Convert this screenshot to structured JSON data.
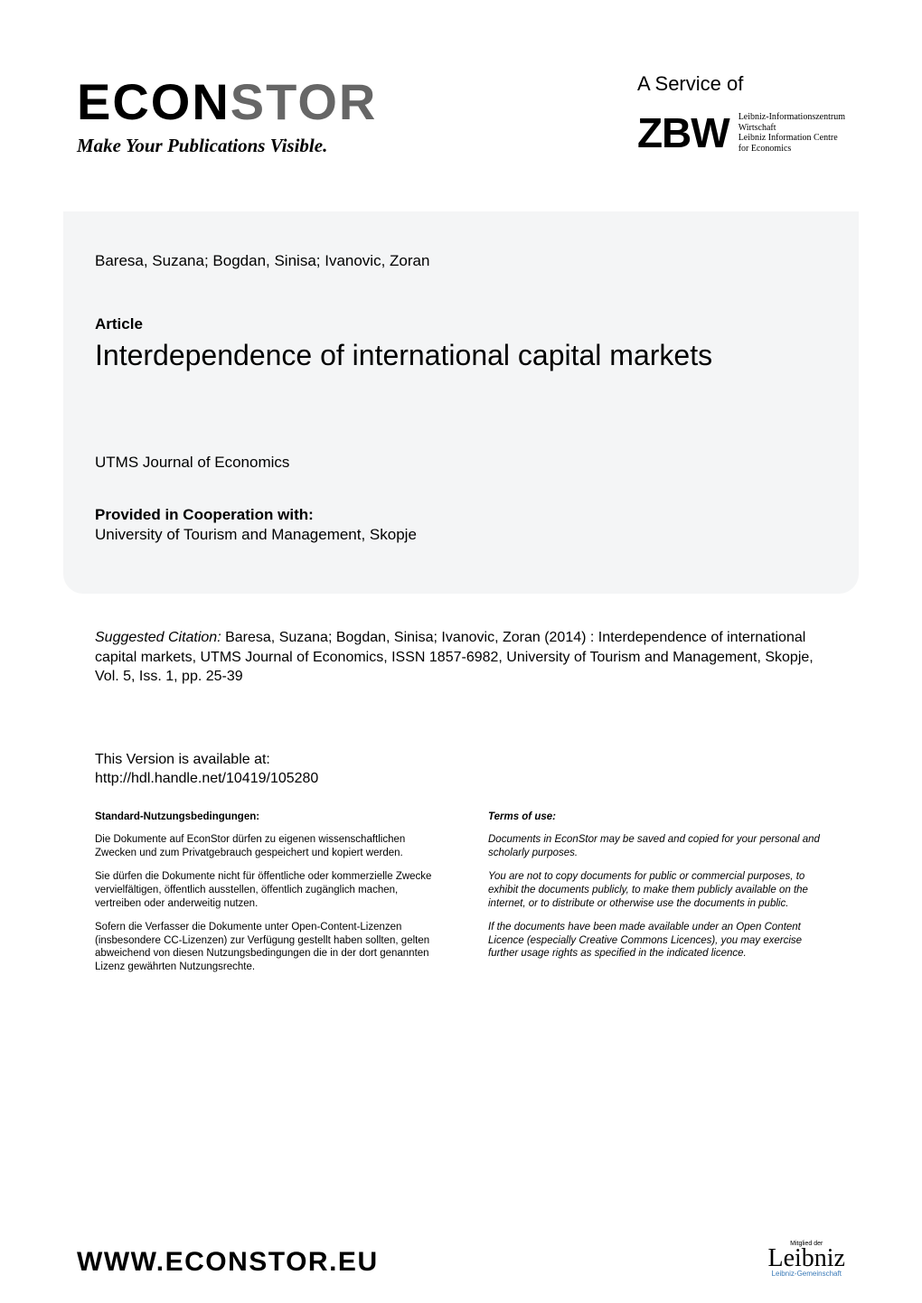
{
  "header": {
    "logo_main": "ECON",
    "logo_accent": "STOR",
    "tagline": "Make Your Publications Visible.",
    "service_of": "A Service of",
    "zbw_logo": "ZBW",
    "zbw_line1": "Leibniz-Informationszentrum",
    "zbw_line2": "Wirtschaft",
    "zbw_line3": "Leibniz Information Centre",
    "zbw_line4": "for Economics"
  },
  "card": {
    "authors": "Baresa, Suzana; Bogdan, Sinisa; Ivanovic, Zoran",
    "article_label": "Article",
    "title": "Interdependence of international capital markets",
    "journal": "UTMS Journal of Economics",
    "provided_label": "Provided in Cooperation with:",
    "provided_org": "University of Tourism and Management, Skopje"
  },
  "citation": {
    "label": "Suggested Citation:",
    "text": " Baresa, Suzana; Bogdan, Sinisa; Ivanovic, Zoran (2014) : Interdependence of international capital markets, UTMS Journal of Economics, ISSN 1857-6982, University of Tourism and Management, Skopje, Vol. 5, Iss. 1, pp. 25-39"
  },
  "version": {
    "label": "This Version is available at:",
    "url": "http://hdl.handle.net/10419/105280"
  },
  "terms_de": {
    "heading": "Standard-Nutzungsbedingungen:",
    "p1": "Die Dokumente auf EconStor dürfen zu eigenen wissenschaftlichen Zwecken und zum Privatgebrauch gespeichert und kopiert werden.",
    "p2": "Sie dürfen die Dokumente nicht für öffentliche oder kommerzielle Zwecke vervielfältigen, öffentlich ausstellen, öffentlich zugänglich machen, vertreiben oder anderweitig nutzen.",
    "p3": "Sofern die Verfasser die Dokumente unter Open-Content-Lizenzen (insbesondere CC-Lizenzen) zur Verfügung gestellt haben sollten, gelten abweichend von diesen Nutzungsbedingungen die in der dort genannten Lizenz gewährten Nutzungsrechte."
  },
  "terms_en": {
    "heading": "Terms of use:",
    "p1": "Documents in EconStor may be saved and copied for your personal and scholarly purposes.",
    "p2": "You are not to copy documents for public or commercial purposes, to exhibit the documents publicly, to make them publicly available on the internet, or to distribute or otherwise use the documents in public.",
    "p3": "If the documents have been made available under an Open Content Licence (especially Creative Commons Licences), you may exercise further usage rights as specified in the indicated licence."
  },
  "footer": {
    "url": "WWW.ECONSTOR.EU",
    "mitglied": "Mitglied der",
    "leibniz_sig": "Leibniz",
    "leibniz_assoc": "Leibniz-Gemeinschaft"
  },
  "colors": {
    "card_bg": "#f4f5f6",
    "text": "#000000",
    "accent_gray": "#666666",
    "leibniz_blue": "#3a7ab8"
  },
  "typography": {
    "logo_fontsize": 56,
    "tagline_fontsize": 21,
    "title_fontsize": 32,
    "body_fontsize": 17,
    "citation_fontsize": 16,
    "terms_fontsize": 11.5,
    "footer_url_fontsize": 30
  }
}
